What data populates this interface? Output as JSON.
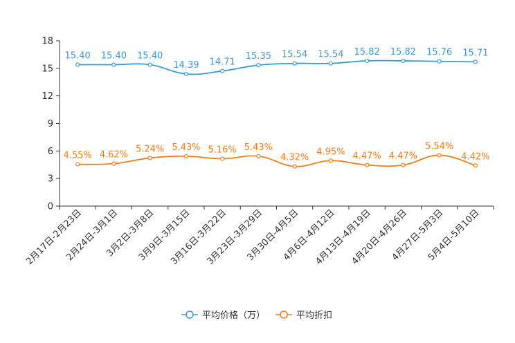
{
  "chart_data": {
    "type": "line",
    "categories": [
      "2月17日-2月23日",
      "2月24日-3月1日",
      "3月2日-3月8日",
      "3月9日-3月15日",
      "3月16日-3月22日",
      "3月23日-3月29日",
      "3月30日-4月5日",
      "4月6日-4月12日",
      "4月13日-4月19日",
      "4月20日-4月26日",
      "4月27日-5月3日",
      "5月4日-5月10日"
    ],
    "ylim": [
      0,
      18
    ],
    "yticks": [
      "0",
      "3",
      "6",
      "9",
      "12",
      "15",
      "18"
    ],
    "series": [
      {
        "name": "平均价格（万）",
        "color": "#3a9ad4",
        "values": [
          15.4,
          15.4,
          15.4,
          14.39,
          14.71,
          15.35,
          15.54,
          15.54,
          15.82,
          15.82,
          15.76,
          15.71
        ],
        "labels": [
          "15.40",
          "15.40",
          "15.40",
          "14.39",
          "14.71",
          "15.35",
          "15.54",
          "15.54",
          "15.82",
          "15.82",
          "15.76",
          "15.71"
        ]
      },
      {
        "name": "平均折扣",
        "color": "#f07d17",
        "values": [
          4.55,
          4.62,
          5.24,
          5.43,
          5.16,
          5.43,
          4.32,
          4.95,
          4.47,
          4.47,
          5.54,
          4.42
        ],
        "labels": [
          "4.55%",
          "4.62%",
          "5.24%",
          "5.43%",
          "5.16%",
          "5.43%",
          "4.32%",
          "4.95%",
          "4.47%",
          "4.47%",
          "5.54%",
          "4.42%"
        ]
      }
    ],
    "legend": "bottom"
  }
}
